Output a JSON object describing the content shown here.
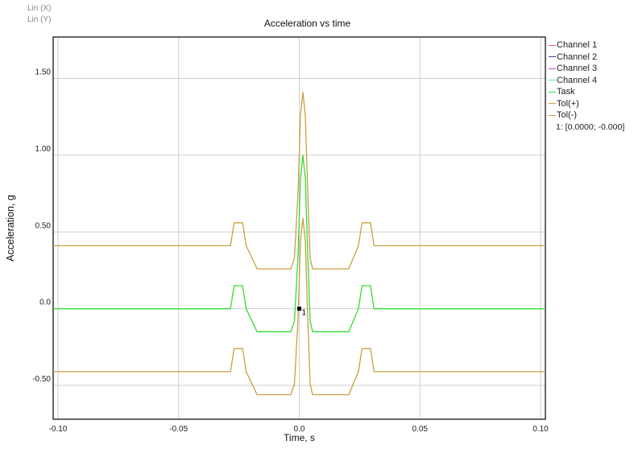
{
  "scales": {
    "x": "Lin (X)",
    "y": "Lin (Y)"
  },
  "chart_data": {
    "type": "line",
    "title": "Acceleration vs time",
    "xlabel": "Time, s",
    "ylabel": "Acceleration, g",
    "xlim": [
      -0.102,
      0.102
    ],
    "ylim": [
      -0.72,
      1.77
    ],
    "xticks": [
      -0.1,
      -0.05,
      0.0,
      0.05,
      0.1
    ],
    "xtick_labels": [
      "-0.10",
      "-0.05",
      "0.0",
      "0.05",
      "0.10"
    ],
    "yticks": [
      -0.5,
      0.0,
      0.5,
      1.0,
      1.5
    ],
    "ytick_labels": [
      "-0.50",
      "0.0",
      "0.50",
      "1.00",
      "1.50"
    ],
    "grid": true,
    "legend_position": "right",
    "series": [
      {
        "name": "Channel 1",
        "color": "#e06666",
        "x": [],
        "y": []
      },
      {
        "name": "Channel 2",
        "color": "#3c3c9c",
        "x": [],
        "y": []
      },
      {
        "name": "Channel 3",
        "color": "#b04ec0",
        "x": [],
        "y": []
      },
      {
        "name": "Channel 4",
        "color": "#66dccc",
        "x": [],
        "y": []
      },
      {
        "name": "Task",
        "color": "#33dd33",
        "x": [
          -0.102,
          -0.0285,
          -0.027,
          -0.0235,
          -0.022,
          -0.0175,
          -0.0035,
          -0.002,
          -0.0005,
          0.0005,
          0.0015,
          0.0025,
          0.0035,
          0.0045,
          0.0055,
          0.0075,
          0.0205,
          0.0245,
          0.026,
          0.0295,
          0.031,
          0.102
        ],
        "y": [
          0.0,
          0.0,
          0.15,
          0.15,
          0.0,
          -0.15,
          -0.15,
          -0.08,
          0.35,
          0.85,
          1.0,
          0.85,
          0.35,
          -0.08,
          -0.15,
          -0.15,
          -0.15,
          0.0,
          0.15,
          0.15,
          0.0,
          0.0
        ]
      },
      {
        "name": "Tol(+)",
        "color": "#c8a040",
        "x": [
          -0.102,
          -0.0285,
          -0.027,
          -0.0235,
          -0.022,
          -0.0175,
          -0.0035,
          -0.002,
          -0.0005,
          0.0005,
          0.0015,
          0.0025,
          0.0035,
          0.0045,
          0.0055,
          0.0075,
          0.0205,
          0.0245,
          0.026,
          0.0295,
          0.031,
          0.102
        ],
        "y": [
          0.41,
          0.41,
          0.56,
          0.56,
          0.41,
          0.26,
          0.26,
          0.33,
          0.76,
          1.26,
          1.41,
          1.26,
          0.76,
          0.33,
          0.26,
          0.26,
          0.26,
          0.41,
          0.56,
          0.56,
          0.41,
          0.41
        ]
      },
      {
        "name": "Tol(-)",
        "color": "#c8a040",
        "x": [
          -0.102,
          -0.0285,
          -0.027,
          -0.0235,
          -0.022,
          -0.0175,
          -0.0035,
          -0.002,
          -0.0005,
          0.0005,
          0.0015,
          0.0025,
          0.0035,
          0.0045,
          0.0055,
          0.0075,
          0.0205,
          0.0245,
          0.026,
          0.0295,
          0.031,
          0.102
        ],
        "y": [
          -0.41,
          -0.41,
          -0.26,
          -0.26,
          -0.41,
          -0.56,
          -0.56,
          -0.49,
          -0.06,
          0.44,
          0.59,
          0.44,
          -0.06,
          -0.49,
          -0.56,
          -0.56,
          -0.56,
          -0.41,
          -0.26,
          -0.26,
          -0.41,
          -0.41
        ]
      }
    ],
    "cursor": {
      "x": 0.0,
      "y": 0.0,
      "label": "1",
      "readout": "1: [0.0000; -0.000]"
    }
  }
}
